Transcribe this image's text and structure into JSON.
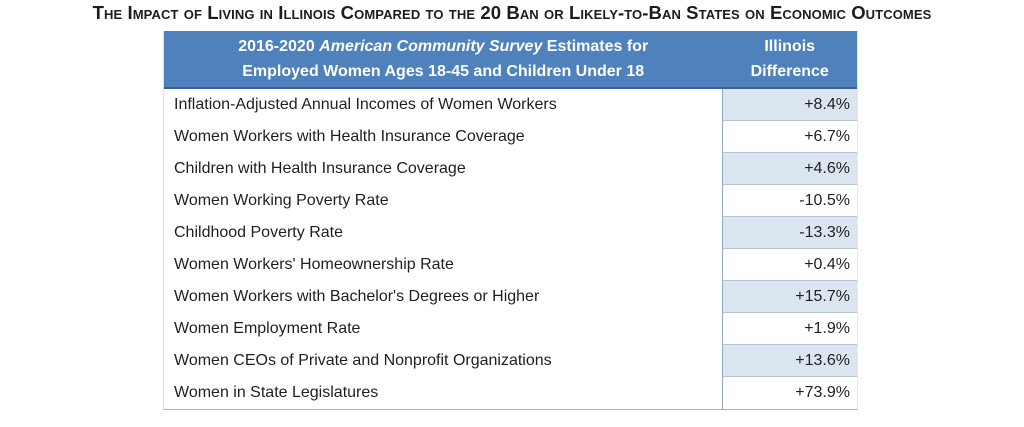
{
  "title": "The Impact of Living in Illinois Compared to the 20 Ban or Likely-to-Ban States on Economic Outcomes",
  "table": {
    "header": {
      "col1_line1_prefix": "2016-2020 ",
      "col1_line1_italic": "American Community Survey",
      "col1_line1_suffix": " Estimates for",
      "col1_line2": "Employed Women Ages 18-45 and Children Under 18",
      "col2_line1": "Illinois",
      "col2_line2": "Difference"
    },
    "rows": [
      {
        "label": "Inflation-Adjusted Annual Incomes of Women Workers",
        "value": "+8.4%",
        "shaded": true
      },
      {
        "label": "Women Workers with Health Insurance Coverage",
        "value": "+6.7%",
        "shaded": false
      },
      {
        "label": "Children with Health Insurance Coverage",
        "value": "+4.6%",
        "shaded": true
      },
      {
        "label": "Women Working Poverty Rate",
        "value": "-10.5%",
        "shaded": false
      },
      {
        "label": "Childhood Poverty Rate",
        "value": "-13.3%",
        "shaded": true
      },
      {
        "label": "Women Workers' Homeownership Rate",
        "value": "+0.4%",
        "shaded": false
      },
      {
        "label": "Women Workers with Bachelor's Degrees or Higher",
        "value": "+15.7%",
        "shaded": true
      },
      {
        "label": "Women Employment Rate",
        "value": "+1.9%",
        "shaded": false
      },
      {
        "label": "Women CEOs of Private and Nonprofit Organizations",
        "value": "+13.6%",
        "shaded": true
      },
      {
        "label": "Women in State Legislatures",
        "value": "+73.9%",
        "shaded": false
      }
    ]
  },
  "colors": {
    "header_bg": "#4F81BD",
    "header_text": "#FFFFFF",
    "shaded_cell": "#DCE6F1",
    "divider_border": "#93A9C4",
    "row_border": "#B3C2D6",
    "text": "#1F1F1F"
  },
  "chart_data": {
    "type": "table",
    "title": "The Impact of Living in Illinois Compared to the 20 Ban or Likely-to-Ban States on Economic Outcomes",
    "columns": [
      "2016-2020 American Community Survey Estimates for Employed Women Ages 18-45 and Children Under 18",
      "Illinois Difference"
    ],
    "rows": [
      [
        "Inflation-Adjusted Annual Incomes of Women Workers",
        "+8.4%"
      ],
      [
        "Women Workers with Health Insurance Coverage",
        "+6.7%"
      ],
      [
        "Children with Health Insurance Coverage",
        "+4.6%"
      ],
      [
        "Women Working Poverty Rate",
        "-10.5%"
      ],
      [
        "Childhood Poverty Rate",
        "-13.3%"
      ],
      [
        "Women Workers' Homeownership Rate",
        "+0.4%"
      ],
      [
        "Women Workers with Bachelor's Degrees or Higher",
        "+15.7%"
      ],
      [
        "Women Employment Rate",
        "+1.9%"
      ],
      [
        "Women CEOs of Private and Nonprofit Organizations",
        "+13.6%"
      ],
      [
        "Women in State Legislatures",
        "+73.9%"
      ]
    ],
    "values_numeric_percent": [
      8.4,
      6.7,
      4.6,
      -10.5,
      -13.3,
      0.4,
      15.7,
      1.9,
      13.6,
      73.9
    ]
  }
}
